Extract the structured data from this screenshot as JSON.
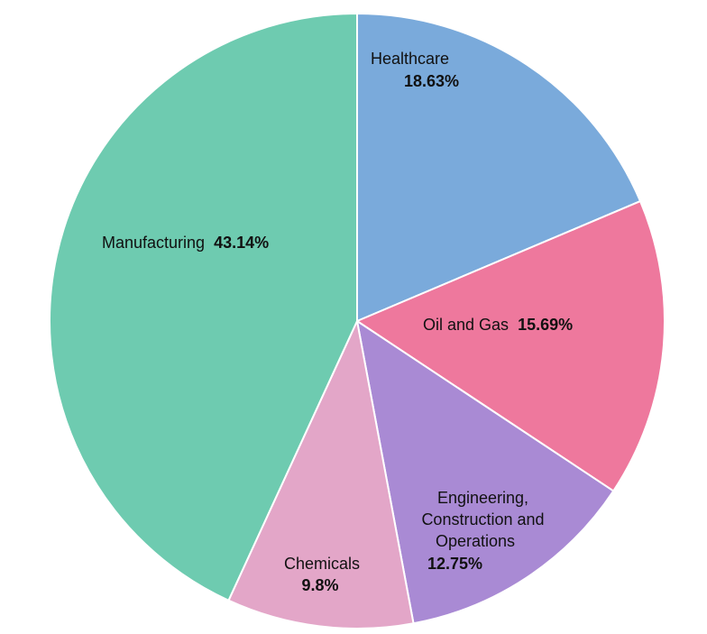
{
  "chart_data": {
    "type": "pie",
    "title": "",
    "slices": [
      {
        "label": "Healthcare",
        "value": 18.63,
        "value_label": "18.63%",
        "color": "#7aaadb"
      },
      {
        "label": "Oil and Gas",
        "value": 15.69,
        "value_label": "15.69%",
        "color": "#ee789d"
      },
      {
        "label": "Engineering, Construction and Operations",
        "value": 12.75,
        "value_label": "12.75%",
        "color": "#a98ad4"
      },
      {
        "label": "Chemicals",
        "value": 9.8,
        "value_label": "9.8%",
        "color": "#e3a6c8"
      },
      {
        "label": "Manufacturing",
        "value": 43.14,
        "value_label": "43.14%",
        "color": "#6ecbb0"
      }
    ]
  }
}
